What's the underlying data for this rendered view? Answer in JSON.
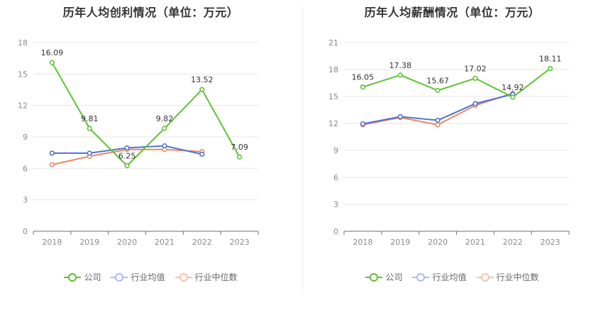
{
  "charts": [
    {
      "title": "历年人均创利情况（单位：万元）",
      "legend": [
        "公司",
        "行业均值",
        "行业中位数"
      ],
      "chart_data": {
        "type": "line",
        "categories": [
          "2018",
          "2019",
          "2020",
          "2021",
          "2022",
          "2023"
        ],
        "ylim": [
          0,
          18
        ],
        "yticks": [
          0,
          3,
          6,
          9,
          12,
          15,
          18
        ],
        "grid": true,
        "legend_position": "bottom",
        "series": [
          {
            "name": "公司",
            "color": "#5ec432",
            "values": [
              16.09,
              9.81,
              6.25,
              9.82,
              13.52,
              7.09
            ],
            "labels": [
              "16.09",
              "9.81",
              "6.25",
              "9.82",
              "13.52",
              "7.09"
            ]
          },
          {
            "name": "行业均值",
            "color": "#4a72d6",
            "values": [
              7.45,
              7.45,
              7.95,
              8.15,
              7.35,
              null
            ]
          },
          {
            "name": "行业中位数",
            "color": "#ee8a5d",
            "values": [
              6.35,
              7.15,
              7.8,
              7.8,
              7.6,
              null
            ]
          }
        ]
      }
    },
    {
      "title": "历年人均薪酬情况（单位：万元）",
      "legend": [
        "公司",
        "行业均值",
        "行业中位数"
      ],
      "chart_data": {
        "type": "line",
        "categories": [
          "2018",
          "2019",
          "2020",
          "2021",
          "2022",
          "2023"
        ],
        "ylim": [
          0,
          21
        ],
        "yticks": [
          0,
          3,
          6,
          9,
          12,
          15,
          18,
          21
        ],
        "grid": true,
        "legend_position": "bottom",
        "series": [
          {
            "name": "公司",
            "color": "#5ec432",
            "values": [
              16.05,
              17.38,
              15.67,
              17.02,
              14.92,
              18.11
            ],
            "labels": [
              "16.05",
              "17.38",
              "15.67",
              "17.02",
              "14.92",
              "18.11"
            ]
          },
          {
            "name": "行业均值",
            "color": "#4a72d6",
            "values": [
              11.95,
              12.75,
              12.35,
              14.2,
              15.25,
              null
            ]
          },
          {
            "name": "行业中位数",
            "color": "#ee8a5d",
            "values": [
              11.85,
              12.65,
              11.85,
              14.0,
              15.35,
              null
            ]
          }
        ]
      }
    }
  ]
}
